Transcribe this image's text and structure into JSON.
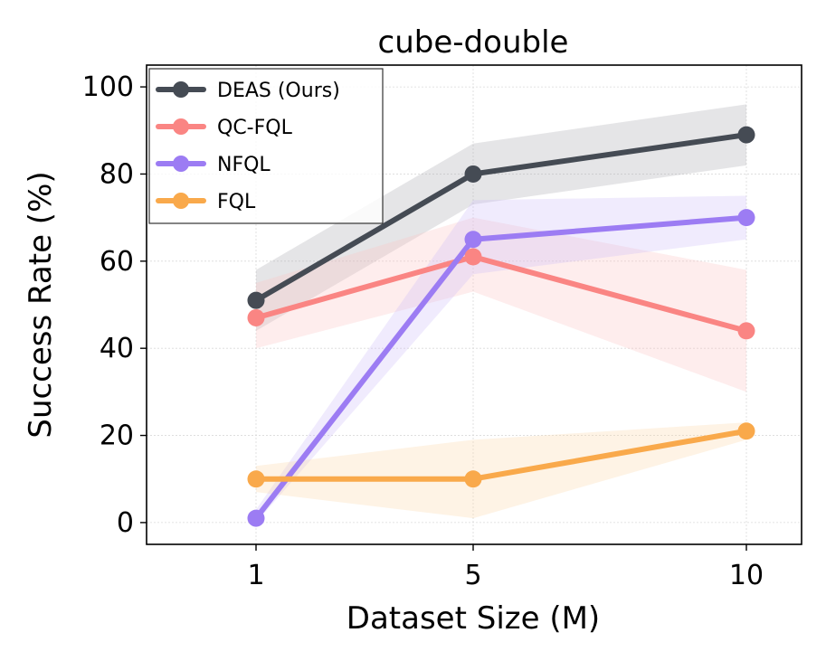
{
  "chart_data": {
    "type": "line",
    "title": "cube-double",
    "xlabel": "Dataset Size (M)",
    "ylabel": "Success Rate (%)",
    "categories": [
      "1",
      "5",
      "10"
    ],
    "yticks": [
      "0",
      "20",
      "40",
      "60",
      "80",
      "100"
    ],
    "ylim": [
      -5,
      105
    ],
    "grid": true,
    "legend_position": "top-left",
    "series": [
      {
        "name": "DEAS (Ours)",
        "color": "#454b54",
        "values": [
          51,
          80,
          89
        ],
        "lower": [
          44,
          73,
          82
        ],
        "upper": [
          58,
          87,
          96
        ],
        "band_color": "#a8aaae"
      },
      {
        "name": "QC-FQL",
        "color": "#fa8583",
        "values": [
          47,
          61,
          44
        ],
        "lower": [
          40,
          53,
          30
        ],
        "upper": [
          55,
          70,
          58
        ],
        "band_color": "#fbc5c4"
      },
      {
        "name": "NFQL",
        "color": "#9c7cf3",
        "values": [
          1,
          65,
          70
        ],
        "lower": [
          0,
          57,
          65
        ],
        "upper": [
          3,
          74,
          75
        ],
        "band_color": "#ccbcf8"
      },
      {
        "name": "FQL",
        "color": "#f9a94b",
        "values": [
          10,
          10,
          21
        ],
        "lower": [
          7,
          1,
          19
        ],
        "upper": [
          13,
          19,
          23
        ],
        "band_color": "#fbd6aa"
      }
    ]
  }
}
